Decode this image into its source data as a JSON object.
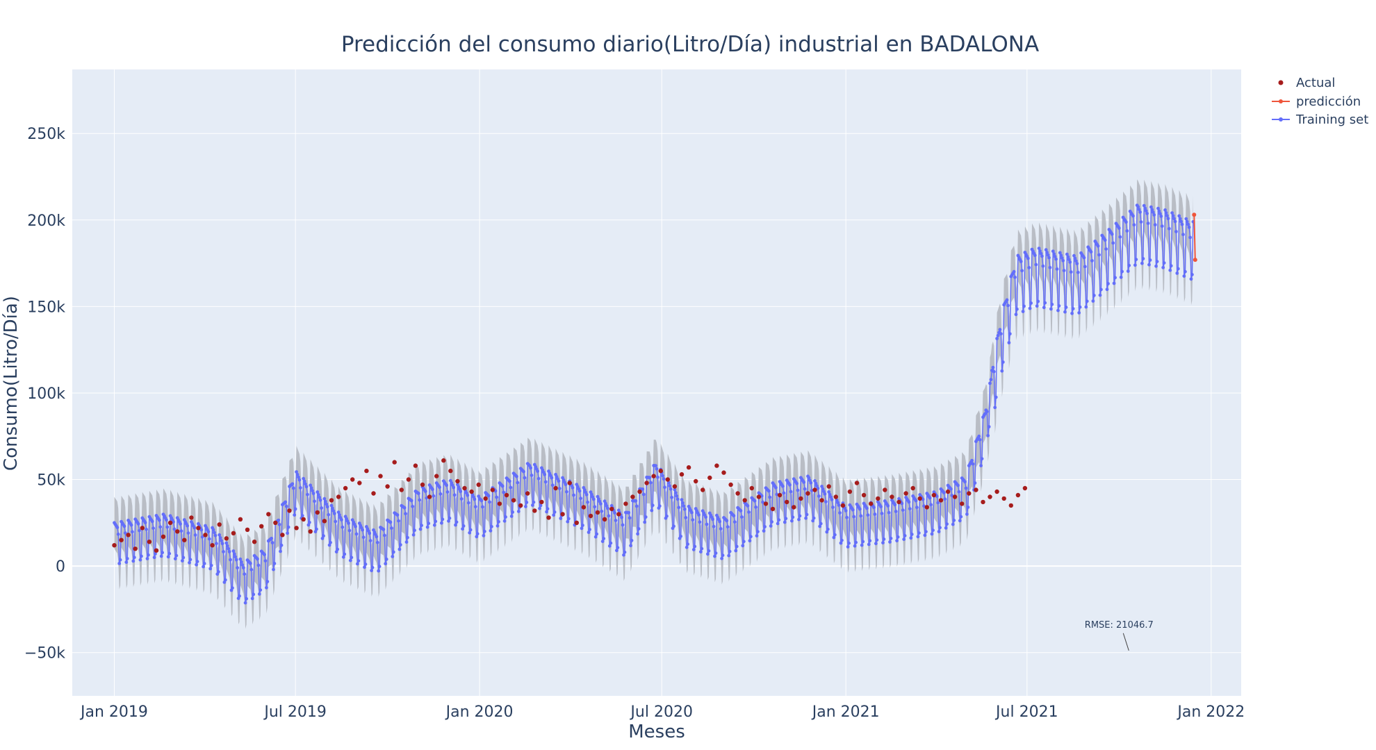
{
  "chart_data": {
    "type": "line",
    "title": "Predicción del consumo diario(Litro/Día) industrial en BADALONA",
    "xlabel": "Meses",
    "ylabel": "Consumo(Litro/Día)",
    "x_range": [
      "2018-11-20",
      "2022-01-31"
    ],
    "ylim": [
      -75000,
      287000
    ],
    "x_ticks": [
      {
        "date": "2019-01-01",
        "label": "Jan 2019"
      },
      {
        "date": "2019-07-01",
        "label": "Jul 2019"
      },
      {
        "date": "2020-01-01",
        "label": "Jan 2020"
      },
      {
        "date": "2020-07-01",
        "label": "Jul 2020"
      },
      {
        "date": "2021-01-01",
        "label": "Jan 2021"
      },
      {
        "date": "2021-07-01",
        "label": "Jul 2021"
      },
      {
        "date": "2022-01-01",
        "label": "Jan 2022"
      }
    ],
    "y_ticks": [
      {
        "value": -50000,
        "label": "−50k"
      },
      {
        "value": 0,
        "label": "0"
      },
      {
        "value": 50000,
        "label": "50k"
      },
      {
        "value": 100000,
        "label": "100k"
      },
      {
        "value": 150000,
        "label": "150k"
      },
      {
        "value": 200000,
        "label": "200k"
      },
      {
        "value": 250000,
        "label": "250k"
      }
    ],
    "grid": true,
    "legend_position": "top-right",
    "series": [
      {
        "name": "Actual",
        "mode": "markers",
        "color": "#a61c1c",
        "x_start": "2019-01-01",
        "x_end": "2021-06-01",
        "step_days": 7,
        "values": [
          12000,
          15000,
          18000,
          10000,
          22000,
          14000,
          9000,
          17000,
          25000,
          20000,
          15000,
          28000,
          22000,
          18000,
          12000,
          24000,
          16000,
          19000,
          27000,
          21000,
          14000,
          23000,
          30000,
          25000,
          18000,
          32000,
          22000,
          27000,
          20000,
          31000,
          26000,
          38000,
          40000,
          45000,
          50000,
          48000,
          55000,
          42000,
          52000,
          46000,
          60000,
          44000,
          50000,
          58000,
          47000,
          40000,
          52000,
          61000,
          55000,
          49000,
          45000,
          43000,
          47000,
          39000,
          44000,
          36000,
          41000,
          38000,
          35000,
          42000,
          32000,
          37000,
          28000,
          45000,
          30000,
          48000,
          25000,
          34000,
          29000,
          31000,
          27000,
          33000,
          30000,
          36000,
          40000,
          43000,
          48000,
          52000,
          55000,
          50000,
          46000,
          53000,
          57000,
          49000,
          44000,
          51000,
          58000,
          54000,
          47000,
          42000,
          38000,
          45000,
          40000,
          36000,
          33000,
          41000,
          37000,
          34000,
          39000,
          42000,
          44000,
          38000,
          46000,
          40000,
          35000,
          43000,
          48000,
          41000,
          36000,
          39000,
          44000,
          40000,
          37000,
          42000,
          45000,
          39000,
          34000,
          41000,
          38000,
          43000,
          40000,
          36000,
          42000,
          44000,
          37000,
          40000,
          43000,
          39000,
          35000,
          41000,
          45000
        ]
      },
      {
        "name": "predicción",
        "mode": "lines+markers",
        "color": "#ef553b",
        "x": [
          "2021-12-15",
          "2021-12-16"
        ],
        "values": [
          203000,
          177000
        ]
      },
      {
        "name": "Training set",
        "mode": "lines+markers",
        "color": "#636efa",
        "x_start": "2019-01-01",
        "x_end": "2021-12-14",
        "trend_knots": [
          {
            "x": "2019-01-01",
            "y": 15000
          },
          {
            "x": "2019-02-20",
            "y": 20000
          },
          {
            "x": "2019-04-10",
            "y": 12000
          },
          {
            "x": "2019-05-10",
            "y": -8000
          },
          {
            "x": "2019-06-01",
            "y": 0
          },
          {
            "x": "2019-07-01",
            "y": 45000
          },
          {
            "x": "2019-08-15",
            "y": 20000
          },
          {
            "x": "2019-09-20",
            "y": 10000
          },
          {
            "x": "2019-11-01",
            "y": 35000
          },
          {
            "x": "2019-12-01",
            "y": 40000
          },
          {
            "x": "2020-01-01",
            "y": 30000
          },
          {
            "x": "2020-02-20",
            "y": 50000
          },
          {
            "x": "2020-04-15",
            "y": 35000
          },
          {
            "x": "2020-05-25",
            "y": 20000
          },
          {
            "x": "2020-06-25",
            "y": 50000
          },
          {
            "x": "2020-07-25",
            "y": 25000
          },
          {
            "x": "2020-09-01",
            "y": 18000
          },
          {
            "x": "2020-10-20",
            "y": 38000
          },
          {
            "x": "2020-11-25",
            "y": 42000
          },
          {
            "x": "2021-01-01",
            "y": 25000
          },
          {
            "x": "2021-02-15",
            "y": 28000
          },
          {
            "x": "2021-04-01",
            "y": 33000
          },
          {
            "x": "2021-05-01",
            "y": 42000
          },
          {
            "x": "2021-05-20",
            "y": 80000
          },
          {
            "x": "2021-06-05",
            "y": 130000
          },
          {
            "x": "2021-06-20",
            "y": 165000
          },
          {
            "x": "2021-07-10",
            "y": 170000
          },
          {
            "x": "2021-08-20",
            "y": 165000
          },
          {
            "x": "2021-09-20",
            "y": 180000
          },
          {
            "x": "2021-10-20",
            "y": 195000
          },
          {
            "x": "2021-11-15",
            "y": 192000
          },
          {
            "x": "2021-12-14",
            "y": 185000
          }
        ]
      }
    ],
    "confidence_band": {
      "color": "#b4b8c0"
    },
    "annotation": {
      "text": "RMSE: 21046.7",
      "x": "2021-10-01",
      "y": -38000
    }
  }
}
